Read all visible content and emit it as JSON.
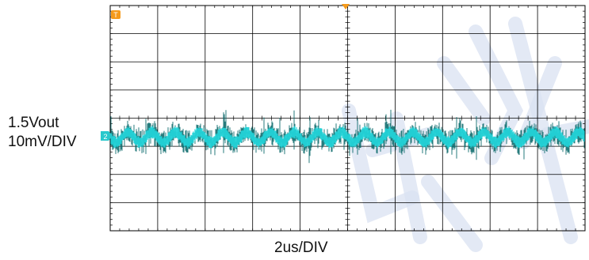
{
  "chart_data": {
    "type": "line",
    "channel_label": "1.5Vout",
    "vertical_scale": "10mV/DIV",
    "horizontal_scale": "2us/DIV",
    "trace_marker": "2",
    "trigger_marker": "T",
    "grid": true,
    "divisions": {
      "x": 10,
      "y": 8
    },
    "series": [
      {
        "channel": "2",
        "description_level_div": -0.05,
        "ripple_amplitude_div": 0.18,
        "noise_peak_div": 0.85
      }
    ],
    "colors": {
      "trace_light": "#22d3d8",
      "trace_dark": "#0f6d6e",
      "grid": "#000000",
      "trigger_marker": "#f59a1b",
      "channel_marker": "#29c8cc",
      "watermark": "#d9e1f2"
    }
  }
}
